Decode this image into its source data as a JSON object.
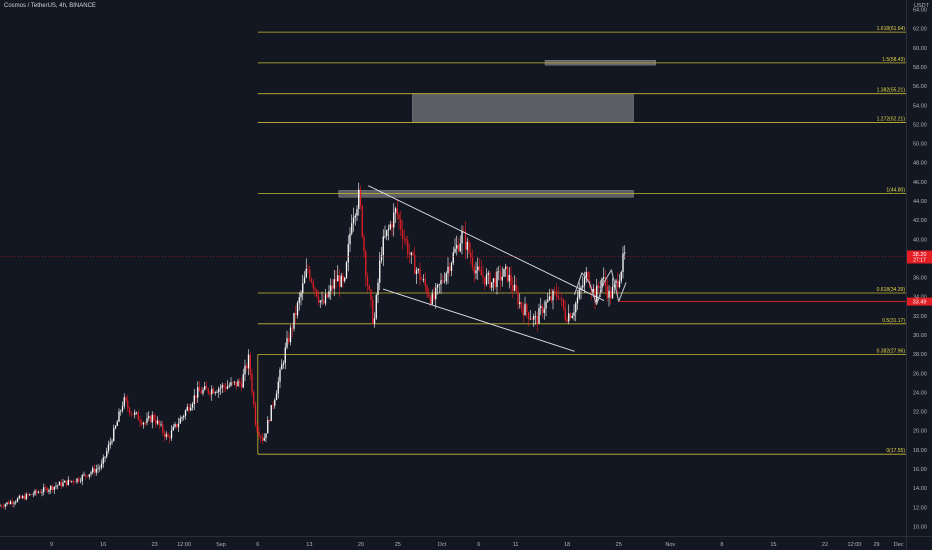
{
  "header": {
    "title": "Cosmos / TetherUS, 4h, BINANCE",
    "currency": "USDT"
  },
  "colors": {
    "background": "#131722",
    "up_candle": "#ffffff",
    "down_candle": "#e51e25",
    "fib_line": "#c8b932",
    "zone": "#5d5e63",
    "price_tag": "#e51e25",
    "axis_text": "#b2b5be"
  },
  "chart_data": {
    "type": "candlestick",
    "title": "",
    "xlabel": "",
    "ylabel": "",
    "ylim": [
      9,
      65
    ],
    "xlim": [
      "Aug 2",
      "Dec 3"
    ],
    "x_ticks": [
      {
        "label": "9",
        "date": "Aug 9"
      },
      {
        "label": "16",
        "date": "Aug 16"
      },
      {
        "label": "23",
        "date": "Aug 23"
      },
      {
        "label": "12:00",
        "date": "Aug 27"
      },
      {
        "label": "Sep",
        "date": "Sep 1"
      },
      {
        "label": "6",
        "date": "Sep 6"
      },
      {
        "label": "13",
        "date": "Sep 13"
      },
      {
        "label": "20",
        "date": "Sep 20"
      },
      {
        "label": "25",
        "date": "Sep 25"
      },
      {
        "label": "Oct",
        "date": "Oct 1"
      },
      {
        "label": "6",
        "date": "Oct 6"
      },
      {
        "label": "11",
        "date": "Oct 11"
      },
      {
        "label": "18",
        "date": "Oct 18"
      },
      {
        "label": "25",
        "date": "Oct 25"
      },
      {
        "label": "Nov",
        "date": "Nov 1"
      },
      {
        "label": "8",
        "date": "Nov 8"
      },
      {
        "label": "15",
        "date": "Nov 15"
      },
      {
        "label": "22",
        "date": "Nov 22"
      },
      {
        "label": "12:00",
        "date": "Nov 26"
      },
      {
        "label": "29",
        "date": "Nov 29"
      },
      {
        "label": "Dec",
        "date": "Dec 2"
      }
    ],
    "y_ticks": [
      10,
      12,
      14,
      16,
      18,
      20,
      22,
      24,
      26,
      28,
      30,
      32,
      34,
      36,
      38,
      40,
      42,
      44,
      46,
      48,
      50,
      52,
      54,
      56,
      58,
      60,
      62,
      64
    ],
    "price_path": [
      [
        "Aug 2",
        12.1
      ],
      [
        "Aug 6",
        13.2
      ],
      [
        "Aug 10",
        14.3
      ],
      [
        "Aug 13",
        15.0
      ],
      [
        "Aug 16",
        16.3
      ],
      [
        "Aug 18",
        20.5
      ],
      [
        "Aug 19",
        23.2
      ],
      [
        "Aug 20",
        22.0
      ],
      [
        "Aug 22",
        20.8
      ],
      [
        "Aug 23",
        21.5
      ],
      [
        "Aug 25",
        19.2
      ],
      [
        "Aug 27",
        21.5
      ],
      [
        "Aug 29",
        24.0
      ],
      [
        "Sep 1",
        24.5
      ],
      [
        "Sep 4",
        25.0
      ],
      [
        "Sep 5",
        27.5
      ],
      [
        "Sep 6",
        20.5
      ],
      [
        "Sep 7",
        19.0
      ],
      [
        "Sep 9",
        25.0
      ],
      [
        "Sep 10",
        28.5
      ],
      [
        "Sep 12",
        34.0
      ],
      [
        "Sep 13",
        37.0
      ],
      [
        "Sep 15",
        33.0
      ],
      [
        "Sep 17",
        36.0
      ],
      [
        "Sep 18",
        35.0
      ],
      [
        "Sep 19",
        42.5
      ],
      [
        "Sep 20",
        44.5
      ],
      [
        "Sep 21",
        36.0
      ],
      [
        "Sep 22",
        31.0
      ],
      [
        "Sep 23",
        39.0
      ],
      [
        "Sep 25",
        43.0
      ],
      [
        "Sep 27",
        38.0
      ],
      [
        "Sep 29",
        35.0
      ],
      [
        "Sep 30",
        33.5
      ],
      [
        "Oct 2",
        37.0
      ],
      [
        "Oct 4",
        40.5
      ],
      [
        "Oct 6",
        36.5
      ],
      [
        "Oct 8",
        35.5
      ],
      [
        "Oct 10",
        36.5
      ],
      [
        "Oct 12",
        33.0
      ],
      [
        "Oct 14",
        31.5
      ],
      [
        "Oct 15",
        33.0
      ],
      [
        "Oct 17",
        34.5
      ],
      [
        "Oct 18",
        32.0
      ],
      [
        "Oct 19",
        32.5
      ],
      [
        "Oct 20",
        34.5
      ],
      [
        "Oct 21",
        36.5
      ],
      [
        "Oct 22",
        34.0
      ],
      [
        "Oct 23",
        36.0
      ],
      [
        "Oct 24",
        34.0
      ],
      [
        "Oct 25",
        35.5
      ],
      [
        "Oct 26",
        38.2
      ]
    ],
    "fib_levels": [
      {
        "label": "0(17.55)",
        "value": 17.55
      },
      {
        "label": "0.382(27.96)",
        "value": 27.96
      },
      {
        "label": "0.5(31.17)",
        "value": 31.17
      },
      {
        "label": "0.618(34.39)",
        "value": 34.39
      },
      {
        "label": "1(44.80)",
        "value": 44.8
      },
      {
        "label": "1.272(52.21)",
        "value": 52.21
      },
      {
        "label": "1.382(55.21)",
        "value": 55.21
      },
      {
        "label": "1.5(58.43)",
        "value": 58.43
      },
      {
        "label": "1.618(61.64)",
        "value": 61.64
      }
    ],
    "fib_start": "Sep 6",
    "fib_end": "Dec 3",
    "zones": [
      {
        "from": "Sep 17",
        "to": "Oct 27",
        "low": 44.4,
        "high": 45.1
      },
      {
        "from": "Sep 27",
        "to": "Oct 27",
        "low": 52.21,
        "high": 55.21
      },
      {
        "from": "Oct 15",
        "to": "Oct 30",
        "low": 58.2,
        "high": 58.7
      }
    ],
    "trendlines": [
      {
        "from": [
          "Sep 21",
          45.6
        ],
        "to": [
          "Oct 23",
          33.6
        ]
      },
      {
        "from": [
          "Sep 23",
          34.8
        ],
        "to": [
          "Oct 19",
          28.3
        ]
      }
    ],
    "pattern_path": [
      [
        "Oct 19",
        34.2
      ],
      [
        "Oct 20",
        36.5
      ],
      [
        "Oct 21",
        35.5
      ],
      [
        "Oct 22",
        33.2
      ],
      [
        "Oct 23",
        35.5
      ],
      [
        "Oct 24",
        36.8
      ],
      [
        "Oct 25",
        33.5
      ],
      [
        "Oct 26",
        35.5
      ]
    ],
    "hline": {
      "from": "Oct 25",
      "to": "Dec 3",
      "value": 33.49
    },
    "last_price": {
      "label": "38.20",
      "sublabel": "27:17",
      "value": 38.2
    },
    "level_tag": {
      "label": "33.49",
      "value": 33.49
    }
  }
}
